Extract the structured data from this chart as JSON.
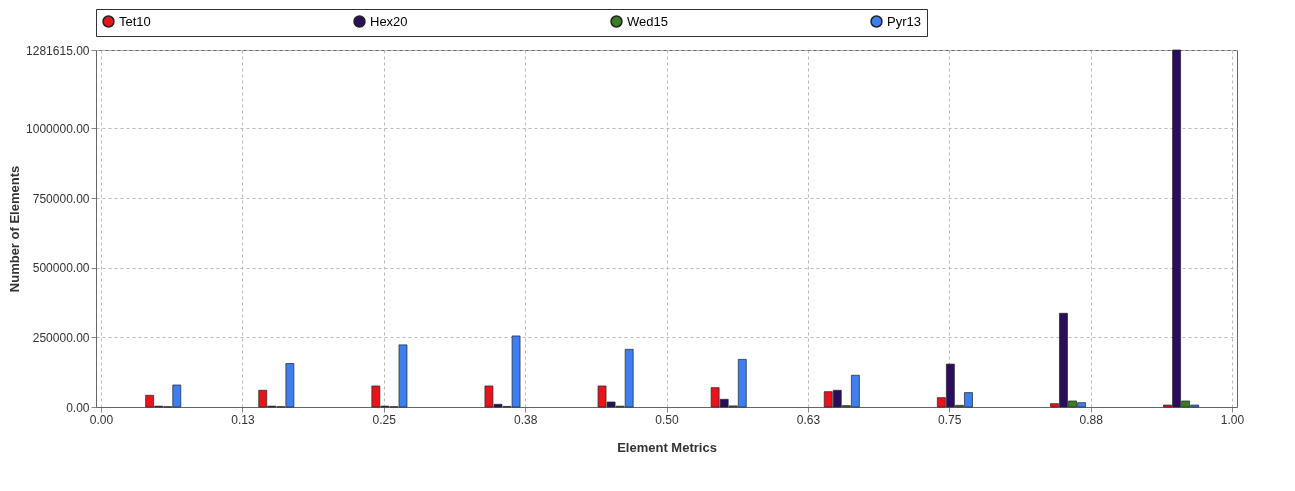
{
  "chart_data": {
    "type": "bar",
    "xlabel": "Element Metrics",
    "ylabel": "Number of Elements",
    "series": [
      {
        "name": "Tet10",
        "color": "#e8141b",
        "x": [
          0.043,
          0.143,
          0.243,
          0.343,
          0.443,
          0.543,
          0.643,
          0.743,
          0.843,
          0.943
        ],
        "values": [
          42000,
          60000,
          75500,
          75500,
          75500,
          69500,
          55000,
          33700,
          12000,
          7000
        ]
      },
      {
        "name": "Hex20",
        "color": "#2a0d5c",
        "x": [
          0.051,
          0.151,
          0.251,
          0.351,
          0.451,
          0.551,
          0.651,
          0.751,
          0.851,
          0.951
        ],
        "values": [
          3000,
          3000,
          3000,
          9600,
          18000,
          27600,
          60000,
          154000,
          336500,
          1281615
        ]
      },
      {
        "name": "Wed15",
        "color": "#3a7d22",
        "x": [
          0.059,
          0.159,
          0.259,
          0.359,
          0.459,
          0.559,
          0.659,
          0.759,
          0.859,
          0.959
        ],
        "values": [
          1000,
          1000,
          1000,
          2000,
          3000,
          4000,
          5000,
          6000,
          21600,
          21600
        ]
      },
      {
        "name": "Pyr13",
        "color": "#3d7ef0",
        "x": [
          0.067,
          0.167,
          0.267,
          0.367,
          0.467,
          0.567,
          0.667,
          0.767,
          0.867,
          0.967
        ],
        "values": [
          79000,
          156000,
          223000,
          255000,
          207000,
          171000,
          114000,
          51700,
          15600,
          7000
        ]
      }
    ],
    "xlim": [
      0,
      1
    ],
    "xticks": [
      {
        "value": 0,
        "label": "0.00"
      },
      {
        "value": 0.125,
        "label": "0.13"
      },
      {
        "value": 0.25,
        "label": "0.25"
      },
      {
        "value": 0.375,
        "label": "0.38"
      },
      {
        "value": 0.5,
        "label": "0.50"
      },
      {
        "value": 0.625,
        "label": "0.63"
      },
      {
        "value": 0.75,
        "label": "0.75"
      },
      {
        "value": 0.875,
        "label": "0.88"
      },
      {
        "value": 1,
        "label": "1.00"
      }
    ],
    "ylim": [
      0,
      1281615
    ],
    "yticks": [
      {
        "value": 0,
        "label": "0.00"
      },
      {
        "value": 250000,
        "label": "250000.00"
      },
      {
        "value": 500000,
        "label": "500000.00"
      },
      {
        "value": 750000,
        "label": "750000.00"
      },
      {
        "value": 1000000,
        "label": "1000000.00"
      },
      {
        "value": 1281615,
        "label": "1281615.00"
      }
    ],
    "grid": true,
    "legend": "top"
  }
}
